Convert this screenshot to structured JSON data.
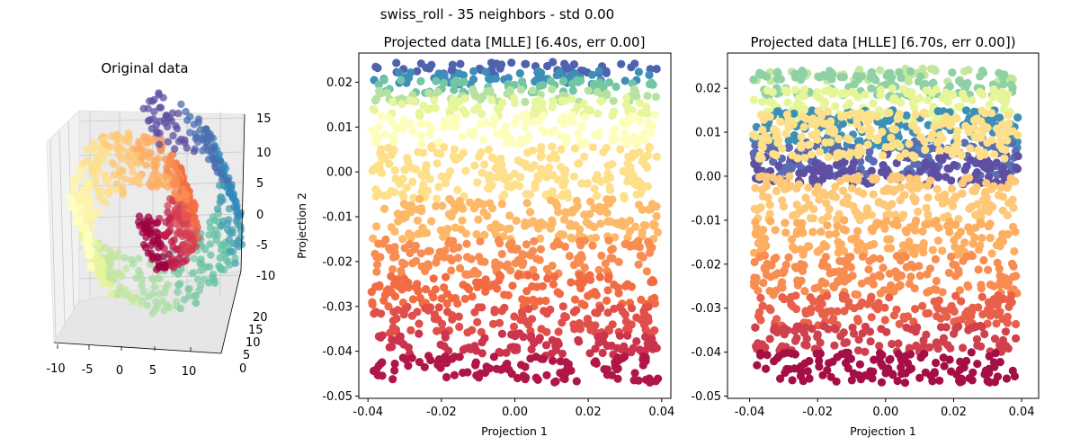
{
  "figure": {
    "suptitle": "swiss_roll - 35 neighbors - std 0.00"
  },
  "chart_data": [
    {
      "type": "scatter",
      "projection": "3d",
      "title": "Original data",
      "colormap": "Spectral",
      "x_ticks": [
        "-10",
        "-5",
        "0",
        "5",
        "10"
      ],
      "y_ticks": [
        "0",
        "5",
        "10",
        "15",
        "20"
      ],
      "z_ticks": [
        "-10",
        "-5",
        "0",
        "5",
        "10",
        "15"
      ],
      "xlim": [
        -11,
        13
      ],
      "ylim": [
        0,
        21
      ],
      "zlim": [
        -12,
        15
      ],
      "series": [
        {
          "points": []
        }
      ]
    },
    {
      "type": "scatter",
      "title": "Projected data [MLLE] [6.40s, err 0.00]",
      "xlabel": "Projection 1",
      "ylabel": "Projection 2",
      "xlim": [
        -0.0425,
        0.0425
      ],
      "ylim": [
        -0.0505,
        0.0265
      ],
      "x_ticks": [
        "-0.04",
        "-0.02",
        "0.00",
        "0.02",
        "0.04"
      ],
      "x_tick_values": [
        -0.04,
        -0.02,
        0.0,
        0.02,
        0.04
      ],
      "y_ticks": [
        "0.02",
        "0.01",
        "0.00",
        "-0.01",
        "-0.02",
        "-0.03",
        "-0.04",
        "-0.05"
      ],
      "y_tick_values": [
        0.02,
        0.01,
        0.0,
        -0.01,
        -0.02,
        -0.03,
        -0.04,
        -0.05
      ],
      "colormap": "Spectral",
      "bands": [
        {
          "y_range": [
            0.0215,
            0.0245
          ],
          "color": "#4f62ae"
        },
        {
          "y_range": [
            0.0195,
            0.0225
          ],
          "color": "#3d8fb8"
        },
        {
          "y_range": [
            0.0175,
            0.0205
          ],
          "color": "#72c6a4"
        },
        {
          "y_range": [
            0.0155,
            0.0185
          ],
          "color": "#b7e1a1"
        },
        {
          "y_range": [
            0.0125,
            0.0165
          ],
          "color": "#e7f59b"
        },
        {
          "y_range": [
            0.006,
            0.013
          ],
          "color": "#fdfebc"
        },
        {
          "y_range": [
            -0.006,
            0.006
          ],
          "color": "#fee08b"
        },
        {
          "y_range": [
            -0.015,
            -0.006
          ],
          "color": "#fdb868"
        },
        {
          "y_range": [
            -0.023,
            -0.015
          ],
          "color": "#f88d52"
        },
        {
          "y_range": [
            -0.03,
            -0.023
          ],
          "color": "#f26b43"
        },
        {
          "y_range": [
            -0.036,
            -0.03
          ],
          "color": "#e04f4a"
        },
        {
          "y_range": [
            -0.041,
            -0.036
          ],
          "color": "#cc334d"
        },
        {
          "y_range": [
            -0.047,
            -0.041
          ],
          "color": "#b01747"
        }
      ]
    },
    {
      "type": "scatter",
      "title": "Projected data [HLLE] [6.70s, err 0.00])",
      "xlabel": "Projection 1",
      "ylabel": "",
      "xlim": [
        -0.0465,
        0.045
      ],
      "ylim": [
        -0.0505,
        0.028
      ],
      "x_ticks": [
        "-0.04",
        "-0.02",
        "0.00",
        "0.02",
        "0.04"
      ],
      "x_tick_values": [
        -0.04,
        -0.02,
        0.0,
        0.02,
        0.04
      ],
      "y_ticks": [
        "0.02",
        "0.01",
        "0.00",
        "-0.01",
        "-0.02",
        "-0.03",
        "-0.04",
        "-0.05"
      ],
      "y_tick_values": [
        0.02,
        0.01,
        0.0,
        -0.01,
        -0.02,
        -0.03,
        -0.04,
        -0.05
      ],
      "colormap": "Spectral",
      "bands": [
        {
          "y_range": [
            0.0215,
            0.0245
          ],
          "color": "#c3e79f"
        },
        {
          "y_range": [
            0.018,
            0.024
          ],
          "color": "#8fd1a4"
        },
        {
          "y_range": [
            0.012,
            0.02
          ],
          "color": "#e6f598"
        },
        {
          "y_range": [
            0.006,
            0.015
          ],
          "color": "#3d8fb8"
        },
        {
          "y_range": [
            0.0,
            0.008
          ],
          "color": "#5a6db3"
        },
        {
          "y_range": [
            -0.002,
            0.005
          ],
          "color": "#5e4fa2"
        },
        {
          "y_range": [
            0.004,
            0.015
          ],
          "color": "#fee08b"
        },
        {
          "y_range": [
            -0.01,
            0.0
          ],
          "color": "#fdc877"
        },
        {
          "y_range": [
            -0.018,
            -0.01
          ],
          "color": "#fdae61"
        },
        {
          "y_range": [
            -0.027,
            -0.018
          ],
          "color": "#f88d52"
        },
        {
          "y_range": [
            -0.034,
            -0.027
          ],
          "color": "#e8604a"
        },
        {
          "y_range": [
            -0.04,
            -0.034
          ],
          "color": "#d0414e"
        },
        {
          "y_range": [
            -0.047,
            -0.04
          ],
          "color": "#a50f45"
        }
      ]
    }
  ]
}
